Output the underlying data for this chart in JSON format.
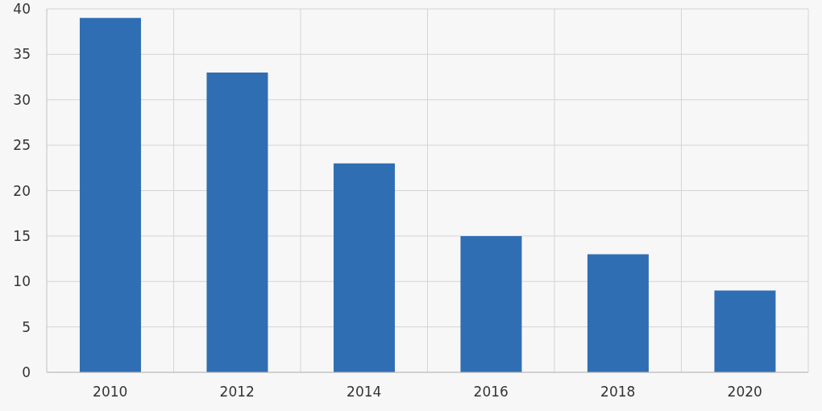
{
  "chart_data": {
    "type": "bar",
    "categories": [
      "2010",
      "2012",
      "2014",
      "2016",
      "2018",
      "2020"
    ],
    "values": [
      39,
      33,
      23,
      15,
      13,
      9
    ],
    "color": "#2f6eb3",
    "ylim": [
      0,
      40
    ],
    "yticks": [
      0,
      5,
      10,
      15,
      20,
      25,
      30,
      35,
      40
    ],
    "grid": true
  }
}
